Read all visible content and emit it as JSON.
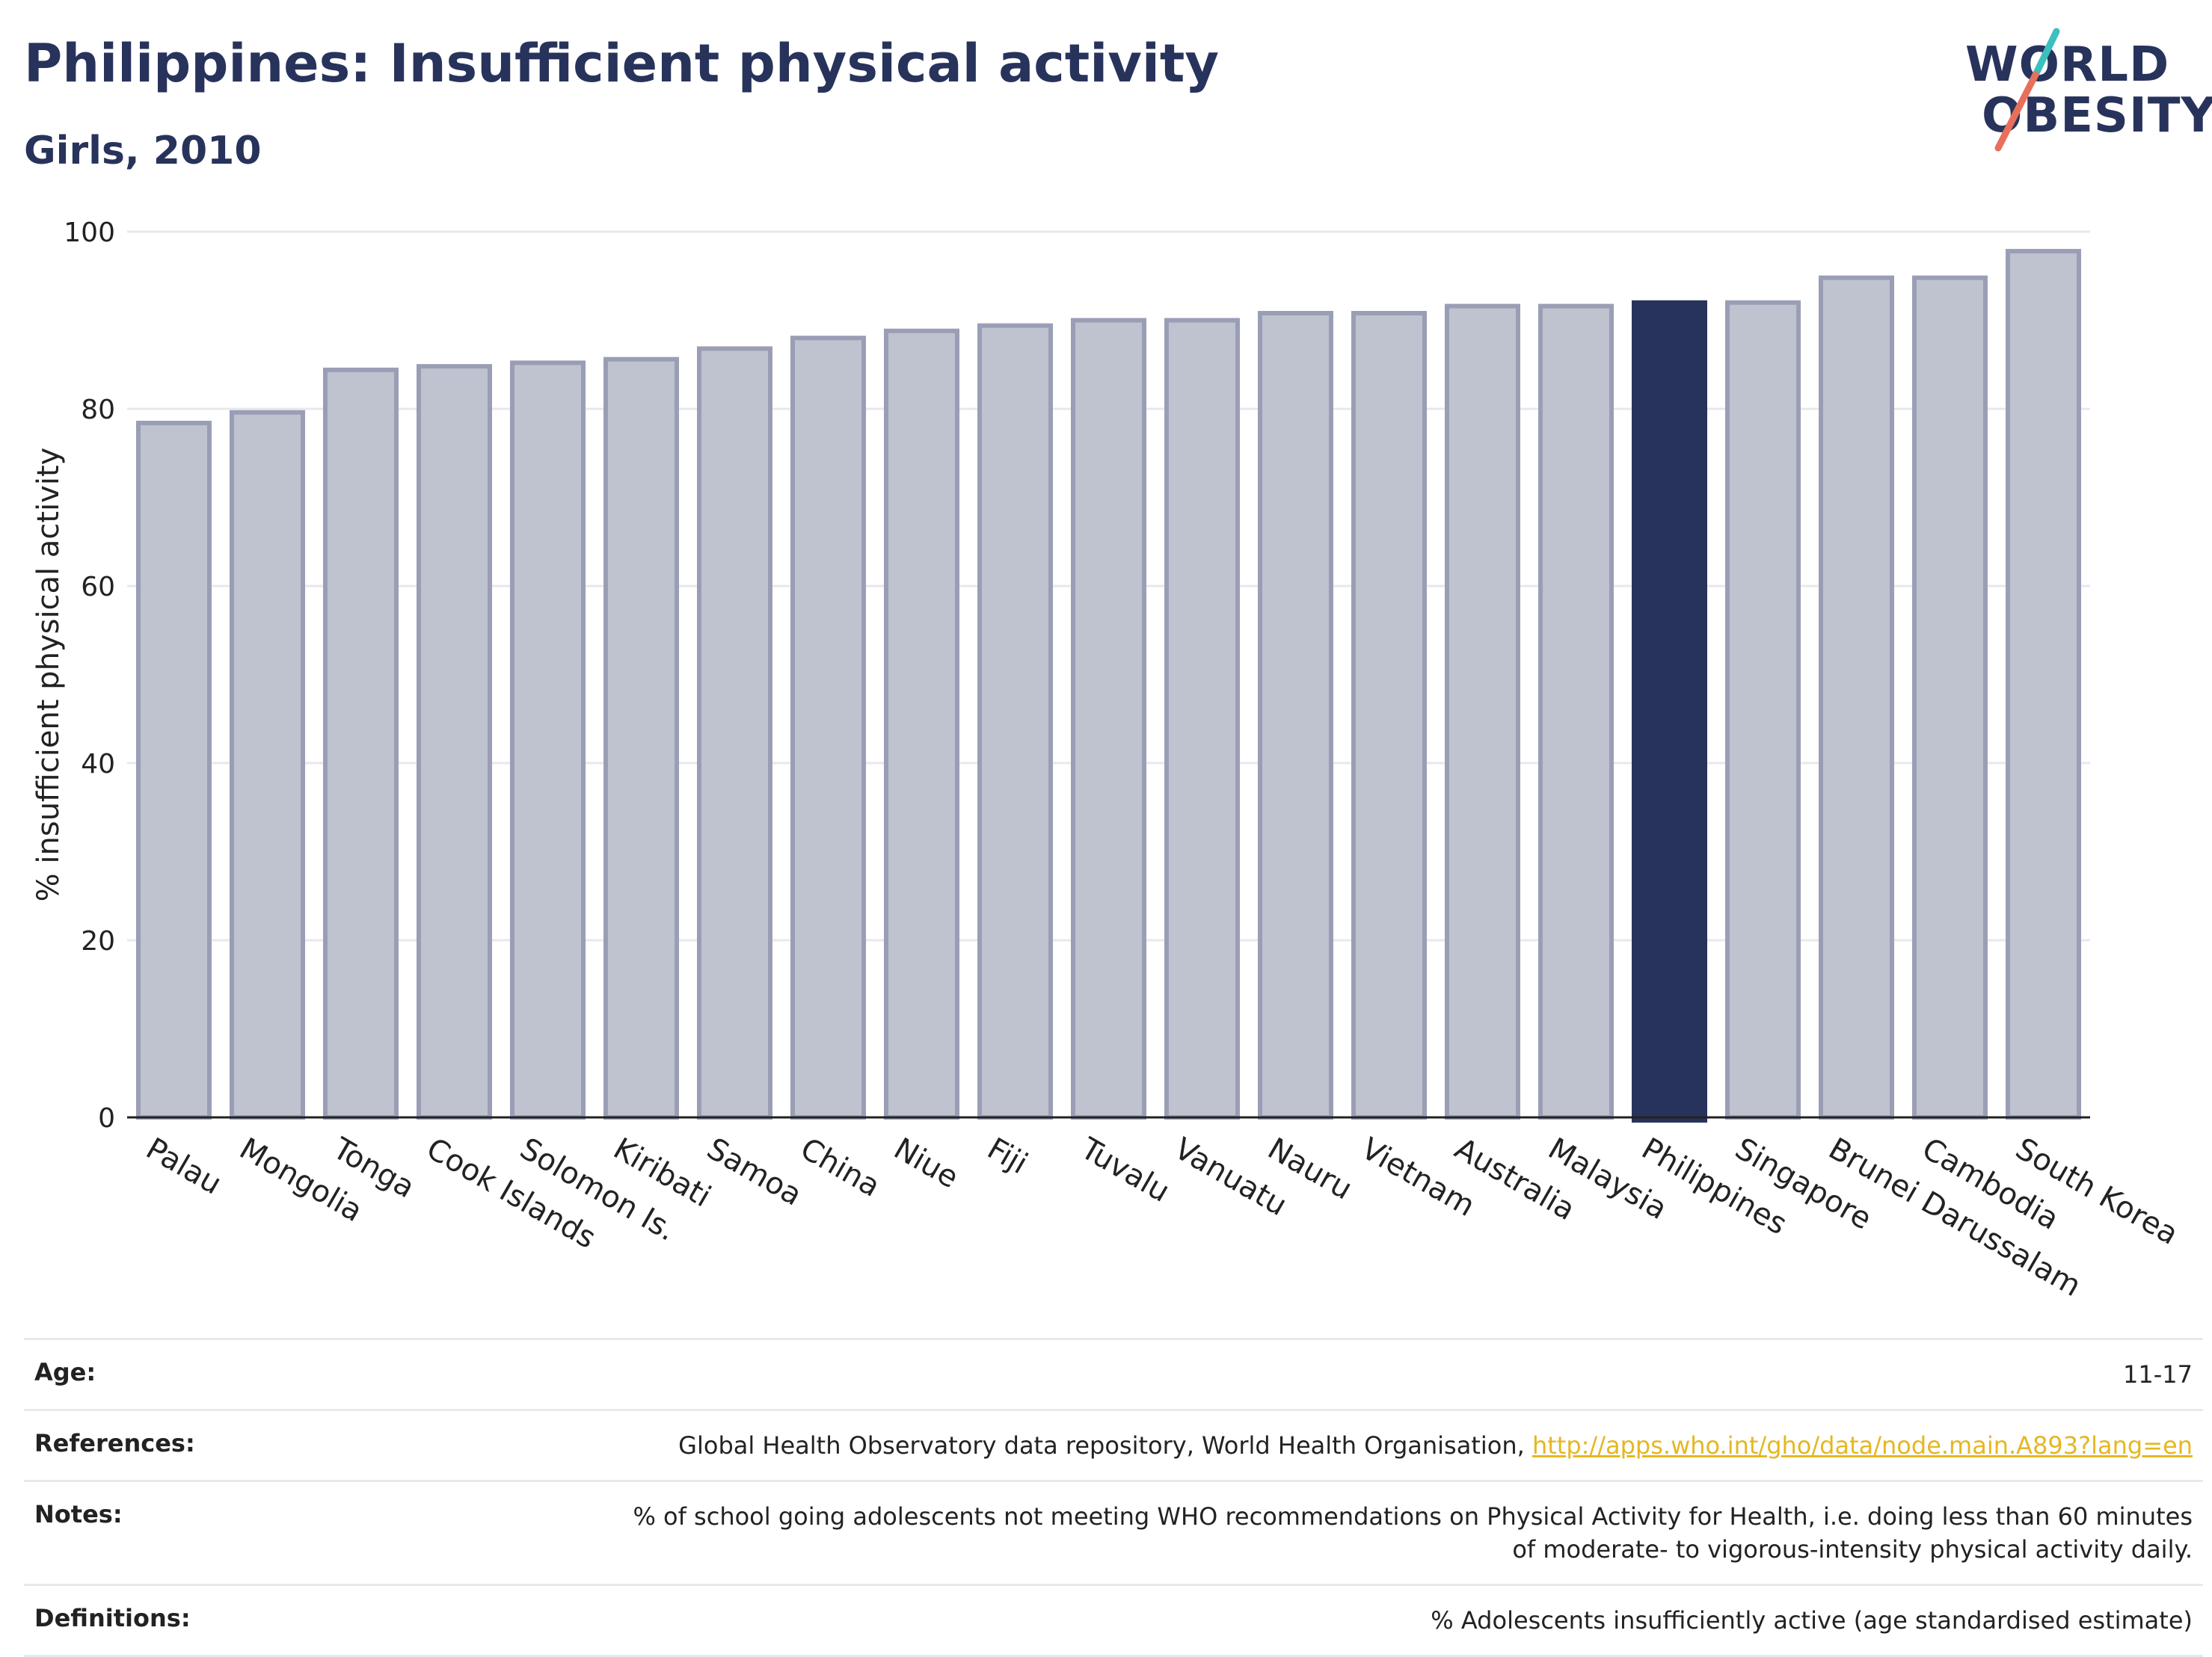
{
  "header": {
    "title": "Philippines: Insufficient physical activity",
    "subtitle": "Girls, 2010"
  },
  "logo": {
    "line1": "WORLD",
    "line2": "OBESITY"
  },
  "colors": {
    "bar": "#bfc2cf",
    "bar_border": "#9a9eb5",
    "highlight": "#28335c",
    "accent_teal": "#3cbfbf",
    "accent_coral": "#e8705a"
  },
  "chart_data": {
    "type": "bar",
    "categories": [
      "Palau",
      "Mongolia",
      "Tonga",
      "Cook Islands",
      "Solomon Is.",
      "Kiribati",
      "Samoa",
      "China",
      "Niue",
      "Fiji",
      "Tuvalu",
      "Vanuatu",
      "Nauru",
      "Vietnam",
      "Australia",
      "Malaysia",
      "Philippines",
      "Singapore",
      "Brunei Darussalam",
      "Cambodia",
      "South Korea"
    ],
    "values": [
      78.4,
      79.6,
      84.4,
      84.8,
      85.2,
      85.6,
      86.8,
      88.0,
      88.8,
      89.4,
      90.0,
      90.0,
      90.8,
      90.8,
      91.6,
      91.6,
      92.0,
      92.0,
      94.8,
      94.8,
      97.8
    ],
    "highlight": "Philippines",
    "ylabel": "% insufficient physical activity",
    "xlabel": "",
    "ylim": [
      0,
      100
    ],
    "yticks": [
      0,
      20,
      40,
      60,
      80,
      100
    ],
    "grid": true
  },
  "info": [
    {
      "label": "Age:",
      "value": "11-17"
    },
    {
      "label": "References:",
      "value": "Global Health Observatory data repository, World Health Organisation, ",
      "link": "http://apps.who.int/gho/data/node.main.A893?lang=en"
    },
    {
      "label": "Notes:",
      "value": "% of school going adolescents not meeting WHO recommendations on Physical Activity for Health, i.e. doing less than 60 minutes of moderate- to vigorous-intensity physical activity daily."
    },
    {
      "label": "Definitions:",
      "value": "% Adolescents insufficiently active (age standardised estimate)"
    }
  ]
}
